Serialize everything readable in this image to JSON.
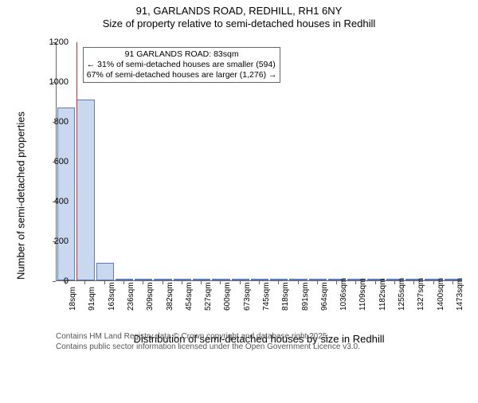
{
  "title": "91, GARLANDS ROAD, REDHILL, RH1 6NY",
  "subtitle": "Size of property relative to semi-detached houses in Redhill",
  "chart": {
    "type": "bar",
    "ylabel": "Number of semi-detached properties",
    "xlabel": "Distribution of semi-detached houses by size in Redhill",
    "ylim": [
      0,
      1200
    ],
    "ytick_step": 200,
    "background_color": "#ffffff",
    "bar_fill": "#cad8ef",
    "bar_border": "#5a7bbf",
    "refline_color": "#c03030",
    "yticks": [
      0,
      200,
      400,
      600,
      800,
      1000,
      1200
    ],
    "xticks": [
      "18sqm",
      "91sqm",
      "163sqm",
      "236sqm",
      "309sqm",
      "382sqm",
      "454sqm",
      "527sqm",
      "600sqm",
      "673sqm",
      "745sqm",
      "818sqm",
      "891sqm",
      "964sqm",
      "1036sqm",
      "1109sqm",
      "1182sqm",
      "1255sqm",
      "1327sqm",
      "1400sqm",
      "1473sqm"
    ],
    "bars": [
      {
        "i": 0,
        "value": 870
      },
      {
        "i": 1,
        "value": 910
      },
      {
        "i": 2,
        "value": 90
      },
      {
        "i": 3,
        "value": 8
      },
      {
        "i": 4,
        "value": 4
      },
      {
        "i": 5,
        "value": 3
      },
      {
        "i": 6,
        "value": 2
      },
      {
        "i": 7,
        "value": 2
      },
      {
        "i": 8,
        "value": 2
      },
      {
        "i": 9,
        "value": 2
      },
      {
        "i": 10,
        "value": 1
      },
      {
        "i": 11,
        "value": 1
      },
      {
        "i": 12,
        "value": 1
      },
      {
        "i": 13,
        "value": 1
      },
      {
        "i": 14,
        "value": 1
      },
      {
        "i": 15,
        "value": 1
      },
      {
        "i": 16,
        "value": 1
      },
      {
        "i": 17,
        "value": 1
      },
      {
        "i": 18,
        "value": 1
      },
      {
        "i": 19,
        "value": 1
      },
      {
        "i": 20,
        "value": 1
      }
    ],
    "refline_x": 1.02,
    "annotation": {
      "line1": "91 GARLANDS ROAD: 83sqm",
      "line2": "← 31% of semi-detached houses are smaller (594)",
      "line3": "67% of semi-detached houses are larger (1,276) →"
    }
  },
  "footer": {
    "line1": "Contains HM Land Registry data © Crown copyright and database right 2025.",
    "line2": "Contains public sector information licensed under the Open Government Licence v3.0."
  }
}
